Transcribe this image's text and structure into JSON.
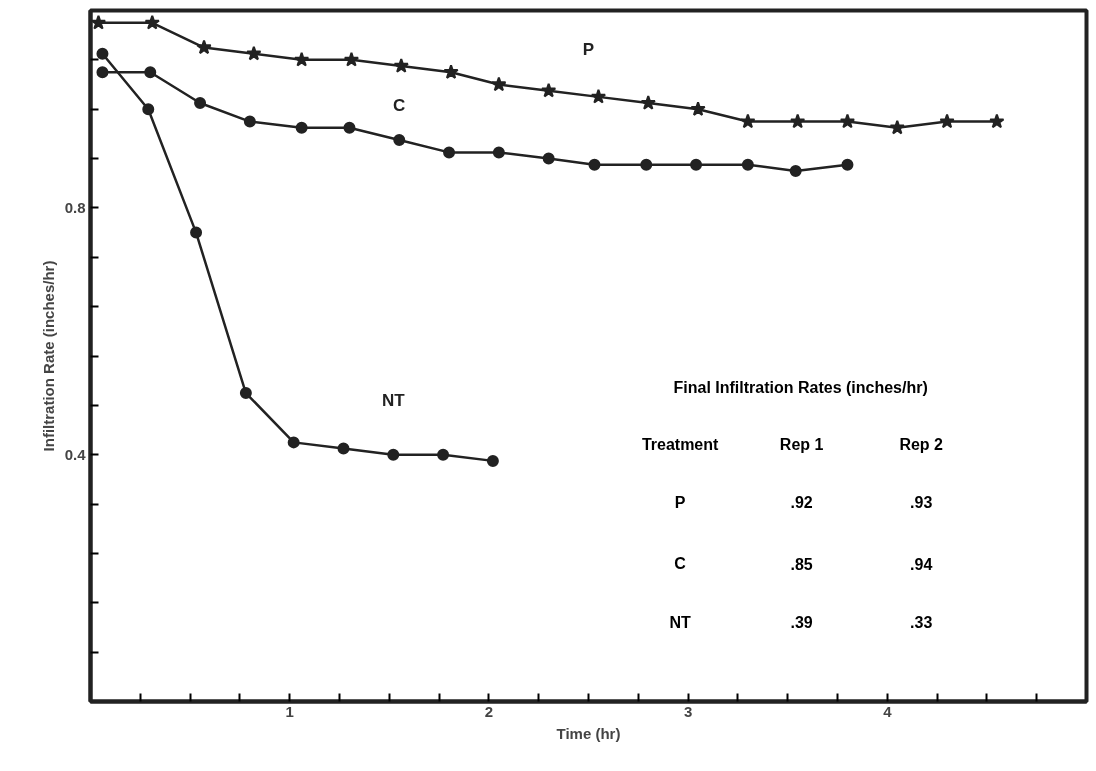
{
  "chart_data": {
    "type": "line",
    "xlabel": "Time (hr)",
    "ylabel": "Infiltration Rate (inches/hr)",
    "xlim": [
      0,
      5
    ],
    "ylim": [
      0,
      1.12
    ],
    "xticks": [
      {
        "value": 0.25,
        "label": null
      },
      {
        "value": 0.5,
        "label": null
      },
      {
        "value": 0.75,
        "label": null
      },
      1,
      {
        "value": 1.25,
        "label": null
      },
      {
        "value": 1.5,
        "label": null
      },
      {
        "value": 1.75,
        "label": null
      },
      2,
      {
        "value": 2.25,
        "label": null
      },
      {
        "value": 2.5,
        "label": null
      },
      {
        "value": 2.75,
        "label": null
      },
      3,
      {
        "value": 3.25,
        "label": null
      },
      {
        "value": 3.5,
        "label": null
      },
      {
        "value": 3.75,
        "label": null
      },
      4,
      {
        "value": 4.25,
        "label": null
      },
      {
        "value": 4.5,
        "label": null
      },
      {
        "value": 4.75,
        "label": null
      }
    ],
    "yticks": [
      {
        "value": 0.08,
        "label": null
      },
      {
        "value": 0.16,
        "label": null
      },
      {
        "value": 0.24,
        "label": null
      },
      {
        "value": 0.32,
        "label": null
      },
      0.4,
      {
        "value": 0.48,
        "label": null
      },
      {
        "value": 0.56,
        "label": null
      },
      {
        "value": 0.64,
        "label": null
      },
      {
        "value": 0.72,
        "label": null
      },
      0.8,
      {
        "value": 0.88,
        "label": null
      },
      {
        "value": 0.96,
        "label": null
      },
      {
        "value": 1.04,
        "label": null
      }
    ],
    "grid": false,
    "legend": false,
    "line_style": "solid",
    "series": [
      {
        "name": "P",
        "color": "#222222",
        "marker": "star",
        "x": [
          0.04,
          0.31,
          0.57,
          0.82,
          1.06,
          1.31,
          1.56,
          1.81,
          2.05,
          2.3,
          2.55,
          2.8,
          3.05,
          3.3,
          3.55,
          3.8,
          4.05,
          4.3,
          4.55
        ],
        "values": [
          1.1,
          1.1,
          1.06,
          1.05,
          1.04,
          1.04,
          1.03,
          1.02,
          1.0,
          0.99,
          0.98,
          0.97,
          0.96,
          0.94,
          0.94,
          0.94,
          0.93,
          0.94,
          0.94
        ]
      },
      {
        "name": "C",
        "color": "#222222",
        "marker": "circle",
        "x": [
          0.06,
          0.3,
          0.55,
          0.8,
          1.06,
          1.3,
          1.55,
          1.8,
          2.05,
          2.3,
          2.53,
          2.79,
          3.04,
          3.3,
          3.54,
          3.8
        ],
        "values": [
          1.02,
          1.02,
          0.97,
          0.94,
          0.93,
          0.93,
          0.91,
          0.89,
          0.89,
          0.88,
          0.87,
          0.87,
          0.87,
          0.87,
          0.86,
          0.87
        ]
      },
      {
        "name": "NT",
        "color": "#222222",
        "marker": "circle",
        "x": [
          0.06,
          0.29,
          0.53,
          0.78,
          1.02,
          1.27,
          1.52,
          1.77,
          2.02
        ],
        "values": [
          1.05,
          0.96,
          0.76,
          0.5,
          0.42,
          0.41,
          0.4,
          0.4,
          0.39
        ]
      }
    ],
    "annotations": [
      "Final Infiltration Rates (inches/hr)",
      "Treatment",
      "Rep 1",
      "Rep 2",
      "P",
      ".92",
      ".93",
      "C",
      ".85",
      ".94",
      "NT",
      ".39",
      ".33"
    ]
  }
}
